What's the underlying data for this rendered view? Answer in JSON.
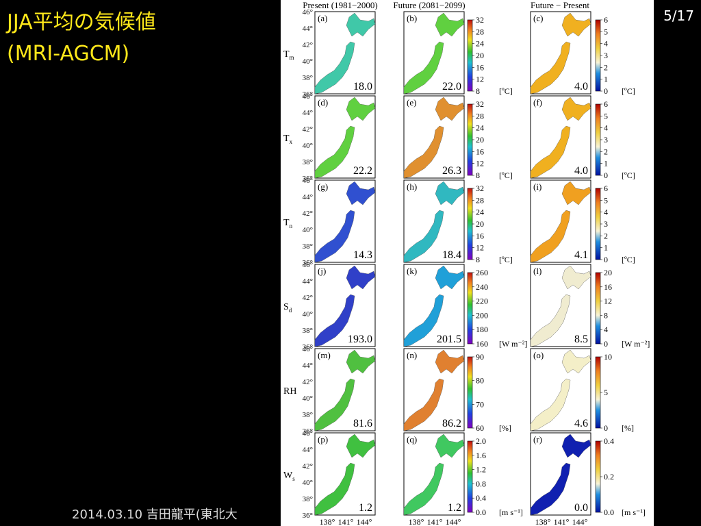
{
  "slide": {
    "title": "JJA平均の気候値",
    "subtitle": "(MRI-AGCM)",
    "page": "5/17",
    "footer": "2014.03.10 吉田龍平(東北大"
  },
  "figure": {
    "columns": [
      "Present (1981−2000)",
      "Future (2081−2099)",
      "Future − Present"
    ],
    "lat_ticks": [
      "46°",
      "44°",
      "42°",
      "40°",
      "38°",
      "36°"
    ],
    "lon_ticks": [
      "138°",
      "141°",
      "144°"
    ],
    "rows": [
      {
        "label": "T",
        "sub": "m",
        "panels": [
          {
            "letter": "(a)",
            "value": "18.0"
          },
          {
            "letter": "(b)",
            "value": "22.0"
          },
          {
            "letter": "(c)",
            "value": "4.0"
          }
        ],
        "abs_ticks": [
          "32",
          "28",
          "24",
          "20",
          "16",
          "12",
          "8"
        ],
        "abs_unit": "[ºC]",
        "diff_ticks": [
          "6",
          "5",
          "4",
          "3",
          "2",
          "1",
          "0"
        ],
        "diff_unit": "[ºC]"
      },
      {
        "label": "T",
        "sub": "x",
        "panels": [
          {
            "letter": "(d)",
            "value": "22.2"
          },
          {
            "letter": "(e)",
            "value": "26.3"
          },
          {
            "letter": "(f)",
            "value": "4.0"
          }
        ],
        "abs_ticks": [
          "32",
          "28",
          "24",
          "20",
          "16",
          "12",
          "8"
        ],
        "abs_unit": "[ºC]",
        "diff_ticks": [
          "6",
          "5",
          "4",
          "3",
          "2",
          "1",
          "0"
        ],
        "diff_unit": "[ºC]"
      },
      {
        "label": "T",
        "sub": "n",
        "panels": [
          {
            "letter": "(g)",
            "value": "14.3"
          },
          {
            "letter": "(h)",
            "value": "18.4"
          },
          {
            "letter": "(i)",
            "value": "4.1"
          }
        ],
        "abs_ticks": [
          "32",
          "28",
          "24",
          "20",
          "16",
          "12",
          "8"
        ],
        "abs_unit": "[ºC]",
        "diff_ticks": [
          "6",
          "5",
          "4",
          "3",
          "2",
          "1",
          "0"
        ],
        "diff_unit": "[ºC]"
      },
      {
        "label": "S",
        "sub": "d",
        "panels": [
          {
            "letter": "(j)",
            "value": "193.0"
          },
          {
            "letter": "(k)",
            "value": "201.5"
          },
          {
            "letter": "(l)",
            "value": "8.5"
          }
        ],
        "abs_ticks": [
          "260",
          "240",
          "220",
          "200",
          "180",
          "160"
        ],
        "abs_unit": "[W m⁻²]",
        "diff_ticks": [
          "20",
          "16",
          "12",
          "8",
          "4",
          "0"
        ],
        "diff_unit": "[W m⁻²]"
      },
      {
        "label": "RH",
        "sub": "",
        "panels": [
          {
            "letter": "(m)",
            "value": "81.6"
          },
          {
            "letter": "(n)",
            "value": "86.2"
          },
          {
            "letter": "(o)",
            "value": "4.6"
          }
        ],
        "abs_ticks": [
          "90",
          "80",
          "70",
          "60"
        ],
        "abs_unit": "[%]",
        "diff_ticks": [
          "10",
          "5",
          "0"
        ],
        "diff_unit": "[%]"
      },
      {
        "label": "W",
        "sub": "s",
        "panels": [
          {
            "letter": "(p)",
            "value": "1.2"
          },
          {
            "letter": "(q)",
            "value": "1.2"
          },
          {
            "letter": "(r)",
            "value": "0.0"
          }
        ],
        "abs_ticks": [
          "2.0",
          "1.6",
          "1.2",
          "0.8",
          "0.4",
          "0.0"
        ],
        "abs_unit": "[m s⁻¹]",
        "diff_ticks": [
          "0.4",
          "0.2",
          "0.0"
        ],
        "diff_unit": "[m s⁻¹]"
      }
    ]
  }
}
